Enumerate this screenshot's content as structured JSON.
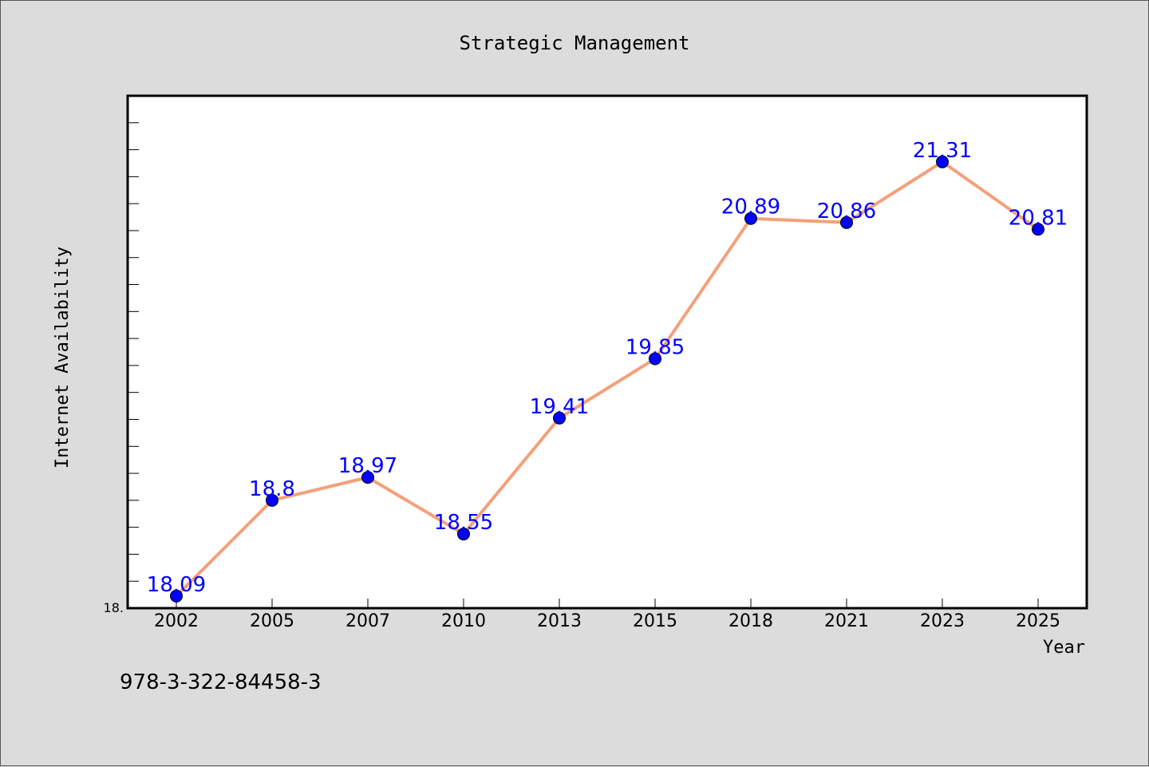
{
  "chart_data": {
    "type": "line",
    "title": "Strategic Management",
    "xlabel": "Year",
    "ylabel": "Internet Availability",
    "categories": [
      "2002",
      "2005",
      "2007",
      "2010",
      "2013",
      "2015",
      "2018",
      "2021",
      "2023",
      "2025"
    ],
    "series": [
      {
        "values": [
          18.09,
          18.8,
          18.97,
          18.55,
          19.41,
          19.85,
          20.89,
          20.86,
          21.31,
          20.81
        ]
      }
    ],
    "data_labels": [
      "18.09",
      "18.8",
      "18.97",
      "18.55",
      "19.41",
      "19.85",
      "20.89",
      "20.86",
      "21.31",
      "20.81"
    ],
    "y_tick_label": "18.",
    "ylim": [
      18.0,
      21.8
    ],
    "grid": false,
    "legend": "none"
  },
  "footer": {
    "isbn": "978-3-322-84458-3"
  },
  "colors": {
    "line": "#f4a07a",
    "marker": "#0000ff",
    "label": "#0000ff",
    "background": "#dcdcdc",
    "plot_bg": "#ffffff"
  }
}
